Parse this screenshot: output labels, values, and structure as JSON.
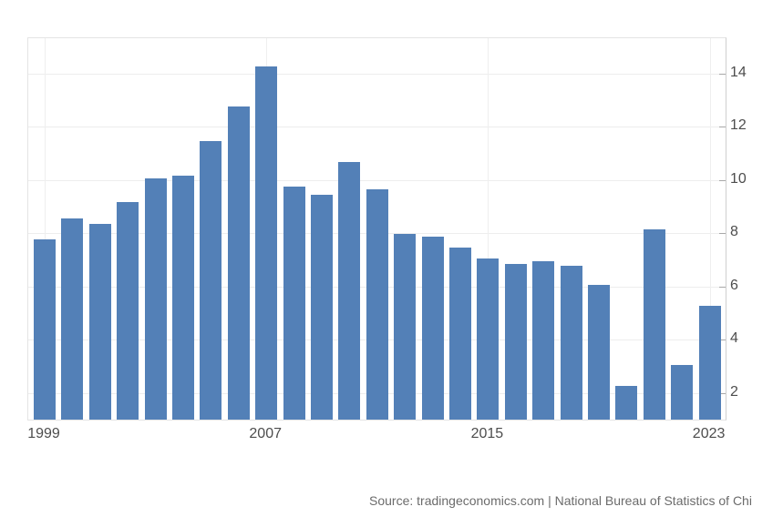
{
  "chart_data": {
    "type": "bar",
    "title": "",
    "categories": [
      "1999",
      "2000",
      "2001",
      "2002",
      "2003",
      "2004",
      "2005",
      "2006",
      "2007",
      "2008",
      "2009",
      "2010",
      "2011",
      "2012",
      "2013",
      "2014",
      "2015",
      "2016",
      "2017",
      "2018",
      "2019",
      "2020",
      "2021",
      "2022",
      "2023"
    ],
    "values": [
      7.7,
      8.5,
      8.3,
      9.1,
      10.0,
      10.1,
      11.4,
      12.7,
      14.2,
      9.7,
      9.4,
      10.6,
      9.6,
      7.9,
      7.8,
      7.4,
      7.0,
      6.8,
      6.9,
      6.7,
      6.0,
      2.2,
      8.1,
      3.0,
      5.2
    ],
    "xlabel": "",
    "ylabel": "",
    "x_tick_labels": [
      "1999",
      "2007",
      "2015",
      "2023"
    ],
    "x_tick_indices": [
      0,
      8,
      16,
      24
    ],
    "y_ticks": [
      2,
      4,
      6,
      8,
      10,
      12,
      14
    ],
    "y_tick_labels": [
      "2",
      "4",
      "6",
      "8",
      "10",
      "12",
      "14"
    ],
    "y_axis_position": "right",
    "ylim": [
      0.94,
      15.33
    ],
    "grid": true,
    "legend": "none",
    "bar_color": "#5380b7",
    "source_text": "Source: tradingeconomics.com | National Bureau of Statistics of Chi"
  },
  "colors": {
    "background": "#ffffff",
    "bar": "#5380b7",
    "gridline": "#ededed",
    "plot_border": "#e4e4e4",
    "axis_line": "#cfcfcf",
    "tick": "#a8a8a8",
    "axis_label": "#4d4d4d",
    "source_text": "#6b6b6b"
  }
}
